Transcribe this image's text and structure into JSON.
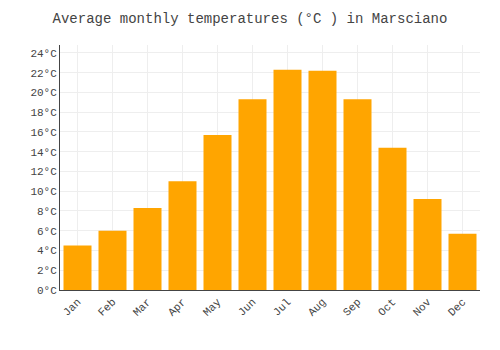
{
  "chart_data": {
    "type": "bar",
    "title": "Average monthly temperatures (°C ) in Marsciano",
    "categories": [
      "Jan",
      "Feb",
      "Mar",
      "Apr",
      "May",
      "Jun",
      "Jul",
      "Aug",
      "Sep",
      "Oct",
      "Nov",
      "Dec"
    ],
    "values": [
      4.5,
      6.0,
      8.3,
      11.0,
      15.7,
      19.3,
      22.3,
      22.2,
      19.3,
      14.4,
      9.2,
      5.7
    ],
    "color": "#FFA500",
    "ylim": [
      0,
      24.8
    ],
    "yticks": [
      {
        "value": 0,
        "label": "0°C"
      },
      {
        "value": 2,
        "label": "2°C"
      },
      {
        "value": 4,
        "label": "4°C"
      },
      {
        "value": 6,
        "label": "6°C"
      },
      {
        "value": 8,
        "label": "8°C"
      },
      {
        "value": 10,
        "label": "10°C"
      },
      {
        "value": 12,
        "label": "12°C"
      },
      {
        "value": 14,
        "label": "14°C"
      },
      {
        "value": 16,
        "label": "16°C"
      },
      {
        "value": 18,
        "label": "18°C"
      },
      {
        "value": 20,
        "label": "20°C"
      },
      {
        "value": 22,
        "label": "22°C"
      },
      {
        "value": 24,
        "label": "24°C"
      }
    ],
    "grid": true
  }
}
